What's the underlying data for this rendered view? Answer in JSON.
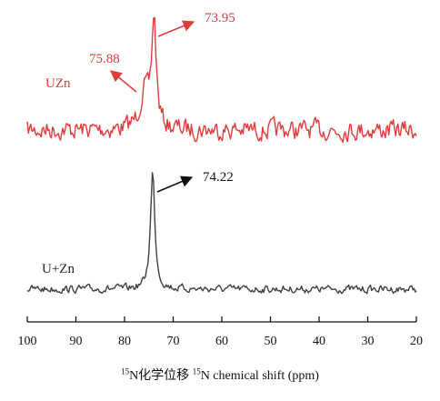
{
  "chart_data": {
    "type": "line",
    "title": "",
    "xlabel": {
      "part1_sup": "15",
      "part1_text": "N化学位移",
      "part2_sup": "15",
      "part2_text": "N chemical shift (ppm)"
    },
    "ylabel": "",
    "xlim": [
      100,
      20
    ],
    "x_reversed": true,
    "x_ticks": [
      100,
      90,
      80,
      70,
      60,
      50,
      40,
      30,
      20
    ],
    "y_axis_shown": false,
    "grid": false,
    "series": [
      {
        "name": "UZn",
        "color": "#e03c3c",
        "peaks": [
          {
            "x": 75.88,
            "label": "75.88"
          },
          {
            "x": 73.95,
            "label": "73.95"
          }
        ]
      },
      {
        "name": "U+Zn",
        "color": "#404040",
        "peaks": [
          {
            "x": 74.22,
            "label": "74.22"
          }
        ]
      }
    ]
  }
}
